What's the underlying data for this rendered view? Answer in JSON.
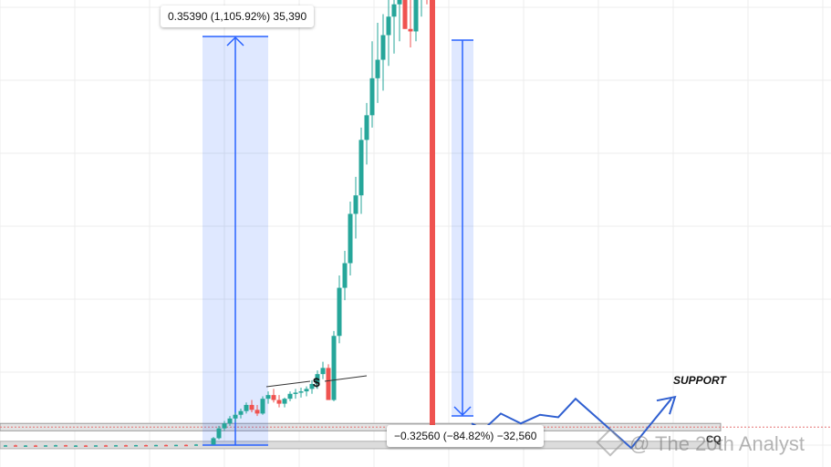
{
  "chart_data": {
    "type": "candlestick",
    "title": "",
    "annotations": {
      "measure_up": "0.35390 (1,105.92%) 35,390",
      "measure_down": "−0.32560 (−84.82%) −32,560",
      "support": "SUPPORT",
      "dollar": "$",
      "watermark": "@ The 20th Analyst",
      "corner": "CQ"
    },
    "price_range": [
      0.02,
      0.42
    ],
    "support_zone": [
      0.034,
      0.04
    ],
    "lower_zone": [
      0.0195,
      0.0255
    ],
    "measure_up": {
      "from": 0.032,
      "to": 0.3539,
      "change_pct": 1105.92
    },
    "measure_down": {
      "from": 0.3539,
      "to": 0.032,
      "change_pct": -84.82
    },
    "projection_path": [
      0.04,
      0.035,
      0.048,
      0.04,
      0.047,
      0.045,
      0.06,
      0.02,
      0.06
    ],
    "candles": [
      [
        0.022,
        0.0225,
        0.0215,
        0.0222
      ],
      [
        0.0222,
        0.0228,
        0.0218,
        0.022
      ],
      [
        0.022,
        0.0224,
        0.0216,
        0.0221
      ],
      [
        0.0221,
        0.0226,
        0.0218,
        0.0219
      ],
      [
        0.0219,
        0.0223,
        0.0215,
        0.0222
      ],
      [
        0.0222,
        0.0227,
        0.0219,
        0.0223
      ],
      [
        0.0223,
        0.0226,
        0.0218,
        0.022
      ],
      [
        0.022,
        0.0224,
        0.0217,
        0.0221
      ],
      [
        0.0221,
        0.0225,
        0.0218,
        0.0219
      ],
      [
        0.0219,
        0.0223,
        0.0216,
        0.0222
      ],
      [
        0.0222,
        0.0226,
        0.0219,
        0.0221
      ],
      [
        0.0221,
        0.0225,
        0.0218,
        0.0223
      ],
      [
        0.0223,
        0.0227,
        0.022,
        0.0222
      ],
      [
        0.0222,
        0.0226,
        0.0219,
        0.0224
      ],
      [
        0.0224,
        0.0228,
        0.0221,
        0.0223
      ],
      [
        0.0223,
        0.0227,
        0.022,
        0.0225
      ],
      [
        0.0225,
        0.0229,
        0.0222,
        0.0224
      ],
      [
        0.0224,
        0.0228,
        0.0221,
        0.0226
      ],
      [
        0.0226,
        0.023,
        0.0223,
        0.0225
      ],
      [
        0.0225,
        0.0232,
        0.0222,
        0.0229
      ],
      [
        0.0229,
        0.029,
        0.0225,
        0.028
      ],
      [
        0.028,
        0.038,
        0.027,
        0.036
      ],
      [
        0.036,
        0.042,
        0.034,
        0.04
      ],
      [
        0.04,
        0.046,
        0.038,
        0.044
      ],
      [
        0.044,
        0.049,
        0.041,
        0.047
      ],
      [
        0.047,
        0.052,
        0.044,
        0.05
      ],
      [
        0.05,
        0.057,
        0.048,
        0.055
      ],
      [
        0.055,
        0.059,
        0.049,
        0.051
      ],
      [
        0.051,
        0.055,
        0.046,
        0.048
      ],
      [
        0.048,
        0.062,
        0.047,
        0.06
      ],
      [
        0.06,
        0.066,
        0.056,
        0.063
      ],
      [
        0.063,
        0.068,
        0.057,
        0.059
      ],
      [
        0.059,
        0.063,
        0.053,
        0.056
      ],
      [
        0.056,
        0.061,
        0.053,
        0.06
      ],
      [
        0.06,
        0.066,
        0.058,
        0.064
      ],
      [
        0.064,
        0.068,
        0.06,
        0.065
      ],
      [
        0.065,
        0.069,
        0.061,
        0.066
      ],
      [
        0.066,
        0.07,
        0.062,
        0.068
      ],
      [
        0.068,
        0.075,
        0.064,
        0.072
      ],
      [
        0.072,
        0.083,
        0.068,
        0.08
      ],
      [
        0.08,
        0.09,
        0.076,
        0.085
      ],
      [
        0.085,
        0.088,
        0.06,
        0.059
      ],
      [
        0.059,
        0.115,
        0.058,
        0.111
      ],
      [
        0.111,
        0.16,
        0.105,
        0.15
      ],
      [
        0.15,
        0.18,
        0.14,
        0.17
      ],
      [
        0.17,
        0.22,
        0.16,
        0.21
      ],
      [
        0.21,
        0.24,
        0.19,
        0.225
      ],
      [
        0.225,
        0.28,
        0.21,
        0.27
      ],
      [
        0.27,
        0.3,
        0.25,
        0.29
      ],
      [
        0.29,
        0.35,
        0.28,
        0.32
      ],
      [
        0.32,
        0.365,
        0.3,
        0.335
      ],
      [
        0.335,
        0.372,
        0.31,
        0.355
      ],
      [
        0.355,
        0.39,
        0.33,
        0.37
      ],
      [
        0.37,
        0.405,
        0.34,
        0.38
      ],
      [
        0.38,
        0.42,
        0.35,
        0.395
      ],
      [
        0.395,
        0.42,
        0.36,
        0.36
      ],
      [
        0.36,
        0.39,
        0.345,
        0.358
      ],
      [
        0.358,
        0.4,
        0.35,
        0.395
      ],
      [
        0.395,
        0.42,
        0.37,
        0.4
      ],
      [
        0.4,
        0.405,
        0.38,
        0.395
      ],
      [
        0.395,
        0.4,
        0.025,
        0.036
      ]
    ],
    "colors": {
      "up": "#26a69a",
      "down": "#ef5350",
      "measure": "#2962ff",
      "zone": "#c8c8c8",
      "projection": "#2f5fd0"
    }
  }
}
